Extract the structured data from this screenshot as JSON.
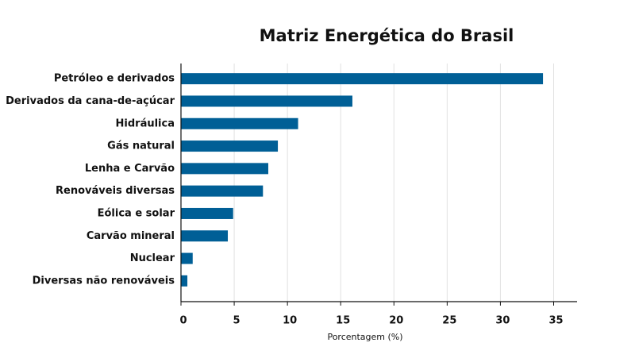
{
  "chart_data": {
    "type": "bar",
    "orientation": "horizontal",
    "title": "Matriz Energética do Brasil",
    "x_label": "Porcentagem (%)",
    "categories": [
      "Petróleo e derivados",
      "Derivados da cana-de-açúcar",
      "Hidráulica",
      "Gás natural",
      "Lenha e Carvão",
      "Renováveis diversas",
      "Eólica e solar",
      "Carvão mineral",
      "Nuclear",
      "Diversas não renováveis"
    ],
    "values": [
      34.0,
      16.1,
      11.0,
      9.1,
      8.2,
      7.7,
      4.9,
      4.4,
      1.1,
      0.6
    ],
    "color": "#005f96",
    "xlim": [
      0,
      37.2
    ],
    "xticks": [
      0,
      5,
      10,
      15,
      20,
      25,
      30,
      35
    ],
    "grid": true
  }
}
